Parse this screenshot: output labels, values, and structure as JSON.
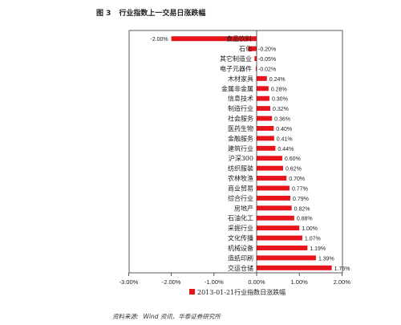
{
  "figure": {
    "number": "图 3",
    "title": "行业指数上一交易日涨跌幅"
  },
  "source": {
    "label": "资料来源:",
    "text": "Wind 资讯、华泰证券研究所"
  },
  "chart_data": {
    "type": "bar",
    "orientation": "horizontal",
    "categories": [
      "食品饮料",
      "石油化工",
      "其它制造业",
      "电子元器件",
      "木材家具",
      "金属非金属",
      "信息技术",
      "制造行业",
      "社会服务",
      "医药生物",
      "金融服务",
      "建筑行业",
      "沪深300",
      "纺织服装",
      "农林牧渔",
      "商业贸易",
      "综合行业",
      "房地产",
      "石油化工",
      "采掘行业",
      "文化传播",
      "机械设备",
      "造纸印刷",
      "交运仓储"
    ],
    "category_text": [
      "食品饮料",
      "石化",
      "其它制造业",
      "电子元器件",
      "木材家具",
      "金属非金属",
      "信息技术",
      "制造行业",
      "社会服务",
      "医药生物",
      "金融服务",
      "建筑行业",
      "沪深300",
      "纺织服装",
      "农林牧渔",
      "商业贸易",
      "综合行业",
      "房地产",
      "石油化工",
      "采掘行业",
      "文化传播",
      "机械设备",
      "造纸印刷",
      "交运仓储"
    ],
    "values": [
      -2.0,
      -0.2,
      -0.05,
      -0.02,
      0.24,
      0.28,
      0.3,
      0.32,
      0.36,
      0.4,
      0.41,
      0.44,
      0.6,
      0.62,
      0.7,
      0.77,
      0.79,
      0.82,
      0.88,
      1.0,
      1.07,
      1.19,
      1.39,
      1.76
    ],
    "value_labels": [
      "-2.00%",
      "-0.20%",
      "-0.05%",
      "-0.02%",
      "0.24%",
      "0.28%",
      "0.30%",
      "0.32%",
      "0.36%",
      "0.40%",
      "0.41%",
      "0.44%",
      "0.60%",
      "0.62%",
      "0.70%",
      "0.77%",
      "0.79%",
      "0.82%",
      "0.88%",
      "1.00%",
      "1.07%",
      "1.19%",
      "1.39%",
      "1.76%"
    ],
    "xlim": [
      -3.0,
      2.0
    ],
    "xticks": [
      -3,
      -2,
      -1,
      0,
      1,
      2
    ],
    "xtick_labels": [
      "-3.00%",
      "-2.00%",
      "-1.00%",
      "0.00%",
      "1.00%",
      "2.00%"
    ],
    "legend": {
      "label": "2013-01-21行业指数日涨跌幅",
      "position": "bottom-center"
    },
    "bar_color": "#e8141c",
    "grid": false
  }
}
